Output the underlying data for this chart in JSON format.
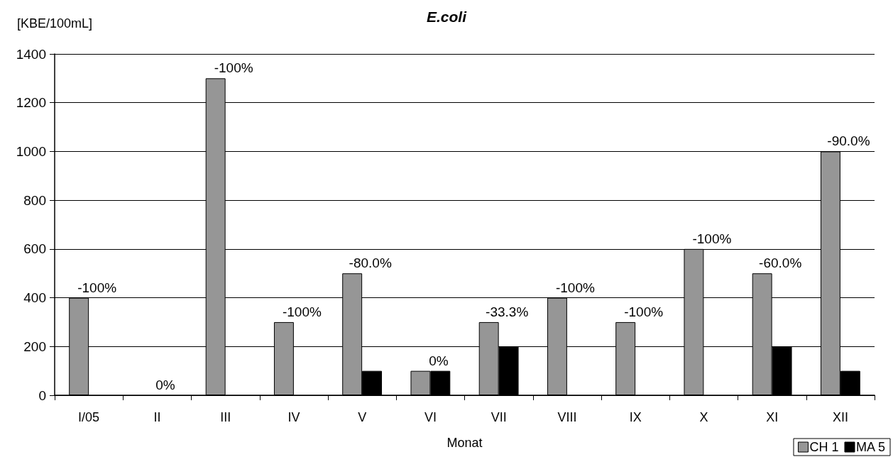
{
  "chart_data": {
    "type": "bar",
    "title": "E.coli",
    "ylabel": "[KBE/100mL]",
    "xlabel": "Monat",
    "categories": [
      "I/05",
      "II",
      "III",
      "IV",
      "V",
      "VI",
      "VII",
      "VIII",
      "IX",
      "X",
      "XI",
      "XII"
    ],
    "series": [
      {
        "name": "CH 1",
        "color": "#969696",
        "values": [
          400,
          0,
          1300,
          300,
          500,
          100,
          300,
          400,
          300,
          600,
          500,
          1000
        ]
      },
      {
        "name": "MA 5",
        "color": "#000000",
        "values": [
          0,
          0,
          0,
          0,
          100,
          100,
          200,
          0,
          0,
          0,
          200,
          100
        ]
      }
    ],
    "ylim": [
      0,
      1400
    ],
    "yticks": [
      0,
      200,
      400,
      600,
      800,
      1000,
      1200,
      1400
    ],
    "grid": "y",
    "legend": "bottom right",
    "annotations": [
      {
        "text": "-100%",
        "x": "I/05",
        "y": 400
      },
      {
        "text": "0%",
        "x": "II",
        "y": 0
      },
      {
        "text": "-100%",
        "x": "III",
        "y": 1300
      },
      {
        "text": "-100%",
        "x": "IV",
        "y": 300
      },
      {
        "text": "-80.0%",
        "x": "V",
        "y": 500
      },
      {
        "text": "0%",
        "x": "VI",
        "y": 100
      },
      {
        "text": "-33.3%",
        "x": "VII",
        "y": 300
      },
      {
        "text": "-100%",
        "x": "VIII",
        "y": 400
      },
      {
        "text": "-100%",
        "x": "IX",
        "y": 300
      },
      {
        "text": "-100%",
        "x": "X",
        "y": 600
      },
      {
        "text": "-60.0%",
        "x": "XI",
        "y": 500
      },
      {
        "text": "-90.0%",
        "x": "XII",
        "y": 1000
      }
    ]
  }
}
